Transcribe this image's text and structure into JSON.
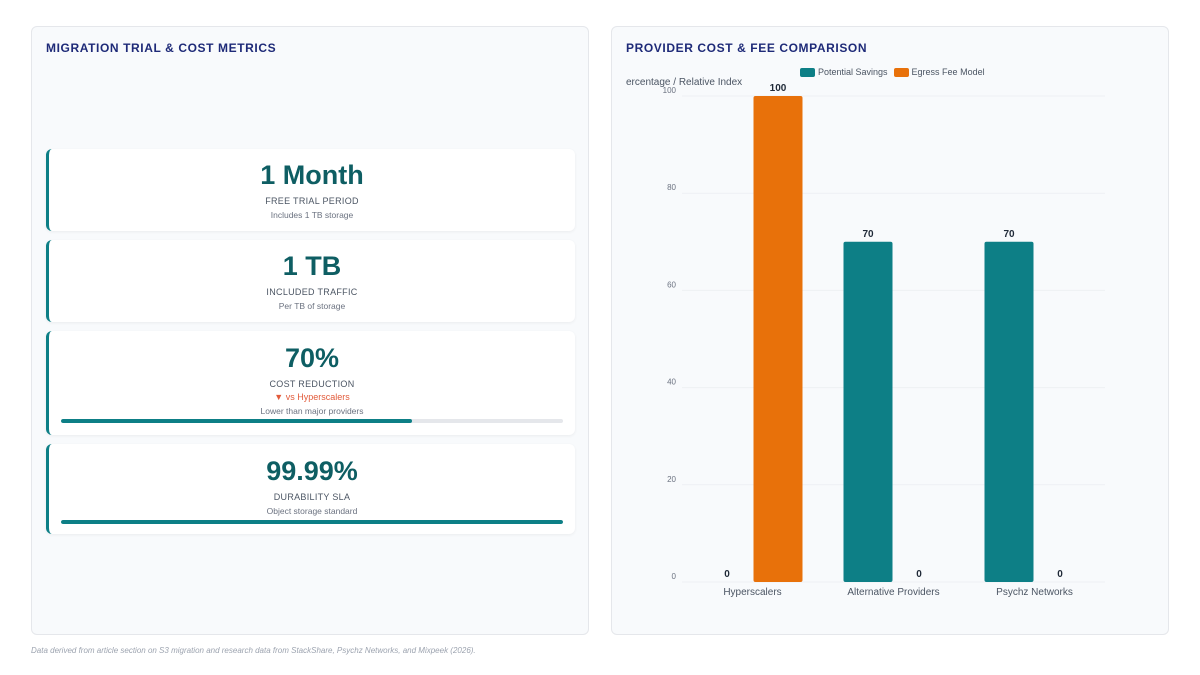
{
  "left_panel": {
    "title": "MIGRATION TRIAL & COST METRICS",
    "metrics": [
      {
        "value": "1 Month",
        "label": "FREE TRIAL PERIOD",
        "sub": "Includes 1 TB storage"
      },
      {
        "value": "1 TB",
        "label": "INCLUDED TRAFFIC",
        "sub": "Per TB of storage"
      },
      {
        "value": "70%",
        "label": "COST REDUCTION",
        "delta": "▼ vs Hyperscalers",
        "sub": "Lower than major providers",
        "progress": 0.7
      },
      {
        "value": "99.99%",
        "label": "DURABILITY SLA",
        "sub": "Object storage standard",
        "progress": 0.9999
      }
    ]
  },
  "right_panel": {
    "title": "PROVIDER COST & FEE COMPARISON"
  },
  "footnote": "Data derived from article section on S3 migration and research data from StackShare, Psychz Networks, and Mixpeek (2026).",
  "colors": {
    "teal": "#0d7f86",
    "orange": "#e8710a",
    "title": "#1e2a78"
  },
  "chart_data": {
    "type": "bar",
    "categories": [
      "Hyperscalers",
      "Alternative Providers",
      "Psychz Networks"
    ],
    "series": [
      {
        "name": "Potential Savings",
        "color": "#0d7f86",
        "values": [
          0,
          70,
          70
        ]
      },
      {
        "name": "Egress Fee Model",
        "color": "#e8710a",
        "values": [
          100,
          0,
          0
        ]
      }
    ],
    "ylabel": "ercentage / Relative Index",
    "ylim": [
      0,
      100
    ],
    "yticks": [
      0,
      20,
      40,
      60,
      80,
      100
    ],
    "legend": "top",
    "grid": false
  }
}
